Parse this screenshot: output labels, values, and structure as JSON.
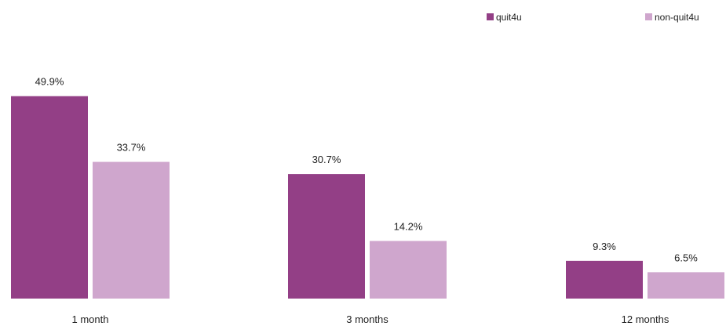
{
  "chart_data": {
    "type": "bar",
    "categories": [
      "1 month",
      "3 months",
      "12 months"
    ],
    "series": [
      {
        "name": "quit4u",
        "color": "#933f86",
        "values": [
          49.9,
          30.7,
          9.3
        ],
        "labels": [
          "49.9%",
          "30.7%",
          "9.3%"
        ]
      },
      {
        "name": "non-quit4u",
        "color": "#cfa6cd",
        "values": [
          33.7,
          14.2,
          6.5
        ],
        "labels": [
          "33.7%",
          "14.2%",
          "6.5%"
        ]
      }
    ],
    "title": "",
    "xlabel": "",
    "ylabel": "",
    "ylim": [
      0,
      50
    ],
    "grid": false,
    "legend_position": "top-right"
  }
}
